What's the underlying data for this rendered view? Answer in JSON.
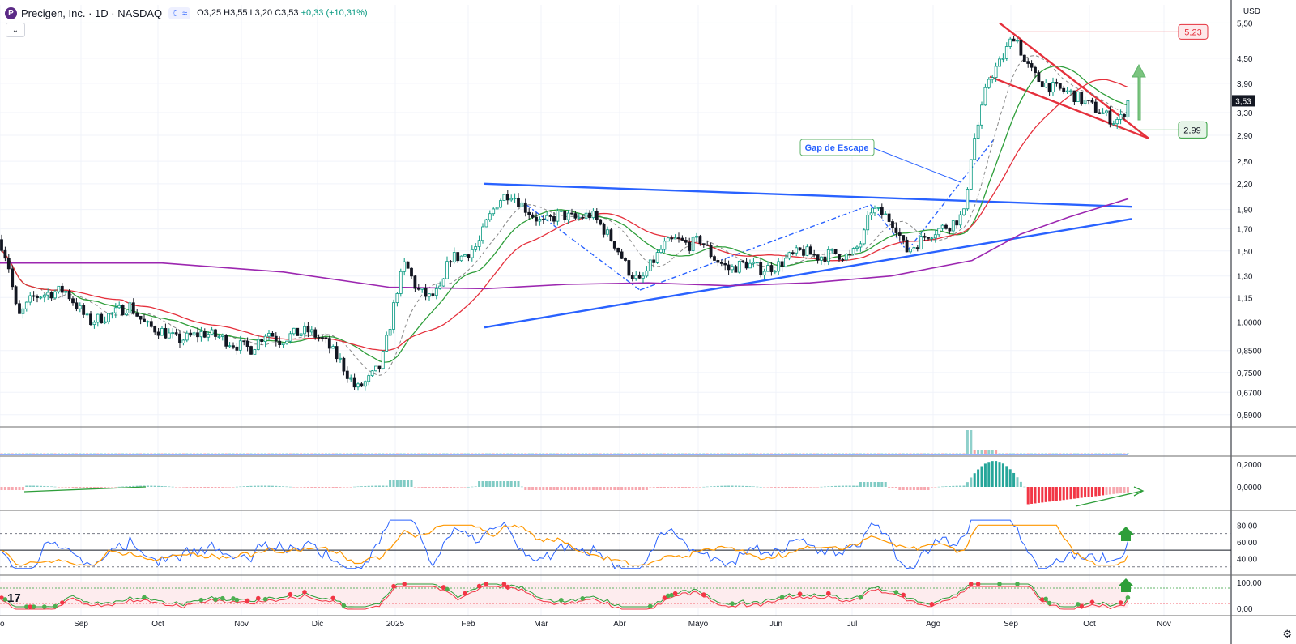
{
  "header": {
    "logo_letter": "P",
    "title": "Precigen, Inc. · 1D · NASDAQ",
    "pill_icons": [
      "moon-icon",
      "approx-icon"
    ],
    "pill_text": "☾ ≈",
    "open": "O3,25",
    "high": "H3,55",
    "low": "L3,20",
    "close": "C3,53",
    "change": "+0,33 (+10,31%)",
    "collapse_label": "⌄",
    "currency": "USD"
  },
  "colors": {
    "up": "#089981",
    "down": "#131722",
    "ma_fast": "#2e9e3a",
    "ma_mid": "#e5303c",
    "ma_slow": "#9c27b0",
    "trendline": "#2962ff",
    "wedge": "#e5303c",
    "annotation_green": "#5fb36a"
  },
  "chart_data": [
    {
      "type": "line",
      "series_kind": "candlestick",
      "y_scale": "log",
      "y_ticks": [
        "5,50",
        "4,50",
        "3,90",
        "3,30",
        "2,90",
        "2,50",
        "2,20",
        "1,90",
        "1,70",
        "1,50",
        "1,30",
        "1,15",
        "1,0000",
        "0,8500",
        "0,7500",
        "0,6700",
        "0,5900"
      ],
      "y_tick_values": [
        5.5,
        4.5,
        3.9,
        3.3,
        2.9,
        2.5,
        2.2,
        1.9,
        1.7,
        1.5,
        1.3,
        1.15,
        1.0,
        0.85,
        0.75,
        0.67,
        0.59
      ],
      "ylim": [
        0.55,
        6.1
      ],
      "x_ticks": [
        "go",
        "Sep",
        "Oct",
        "Nov",
        "Dic",
        "2025",
        "Feb",
        "Mar",
        "Abr",
        "Mayo",
        "Jun",
        "Jul",
        "Ago",
        "Sep",
        "Oct",
        "Nov"
      ],
      "price_path": [
        [
          0,
          1.6
        ],
        [
          10,
          1.4
        ],
        [
          22,
          1.02
        ],
        [
          40,
          1.15
        ],
        [
          60,
          1.18
        ],
        [
          80,
          1.2
        ],
        [
          110,
          1.0
        ],
        [
          140,
          1.05
        ],
        [
          160,
          1.1
        ],
        [
          180,
          0.98
        ],
        [
          200,
          0.95
        ],
        [
          220,
          0.9
        ],
        [
          250,
          0.94
        ],
        [
          270,
          0.92
        ],
        [
          290,
          0.88
        ],
        [
          310,
          0.86
        ],
        [
          330,
          0.95
        ],
        [
          345,
          0.9
        ],
        [
          360,
          0.93
        ],
        [
          380,
          0.95
        ],
        [
          400,
          0.9
        ],
        [
          420,
          0.8
        ],
        [
          440,
          0.68
        ],
        [
          455,
          0.72
        ],
        [
          470,
          0.78
        ],
        [
          480,
          0.95
        ],
        [
          490,
          1.2
        ],
        [
          500,
          1.4
        ],
        [
          515,
          1.2
        ],
        [
          530,
          1.15
        ],
        [
          545,
          1.2
        ],
        [
          555,
          1.45
        ],
        [
          570,
          1.45
        ],
        [
          590,
          1.55
        ],
        [
          600,
          1.75
        ],
        [
          615,
          2.0
        ],
        [
          630,
          2.1
        ],
        [
          650,
          1.9
        ],
        [
          670,
          1.75
        ],
        [
          690,
          1.85
        ],
        [
          710,
          1.8
        ],
        [
          730,
          1.85
        ],
        [
          745,
          1.7
        ],
        [
          760,
          1.55
        ],
        [
          775,
          1.35
        ],
        [
          790,
          1.25
        ],
        [
          805,
          1.4
        ],
        [
          820,
          1.55
        ],
        [
          835,
          1.6
        ],
        [
          850,
          1.55
        ],
        [
          865,
          1.6
        ],
        [
          880,
          1.45
        ],
        [
          900,
          1.35
        ],
        [
          920,
          1.4
        ],
        [
          940,
          1.35
        ],
        [
          960,
          1.38
        ],
        [
          975,
          1.45
        ],
        [
          990,
          1.5
        ],
        [
          1010,
          1.45
        ],
        [
          1030,
          1.48
        ],
        [
          1050,
          1.45
        ],
        [
          1065,
          1.6
        ],
        [
          1075,
          1.9
        ],
        [
          1090,
          1.85
        ],
        [
          1105,
          1.75
        ],
        [
          1118,
          1.5
        ],
        [
          1130,
          1.55
        ],
        [
          1145,
          1.65
        ],
        [
          1160,
          1.7
        ],
        [
          1175,
          1.75
        ],
        [
          1190,
          1.85
        ],
        [
          1200,
          2.7
        ],
        [
          1210,
          3.2
        ],
        [
          1220,
          4.0
        ],
        [
          1235,
          4.4
        ],
        [
          1253,
          5.2
        ],
        [
          1265,
          4.4
        ],
        [
          1280,
          4.0
        ],
        [
          1300,
          3.8
        ],
        [
          1320,
          3.7
        ],
        [
          1340,
          3.5
        ],
        [
          1360,
          3.3
        ],
        [
          1375,
          3.15
        ],
        [
          1385,
          3.2
        ],
        [
          1393,
          3.53
        ]
      ],
      "last_price": "3,53",
      "overlays": [
        {
          "kind": "moving_average_fast"
        },
        {
          "kind": "moving_average_dashed"
        },
        {
          "kind": "moving_average_mid"
        },
        {
          "kind": "moving_average_slow"
        }
      ],
      "annotations": {
        "gap_label": "Gap de Escape",
        "high_label": "5,23",
        "low_label": "2,99"
      }
    },
    {
      "type": "bar",
      "panel": "volume",
      "spike_position": "Ago"
    },
    {
      "type": "bar",
      "panel": "oscillator",
      "y_ticks": [
        "0,2000",
        "0,0000"
      ],
      "y_tick_values": [
        0.2,
        0.0
      ]
    },
    {
      "type": "line",
      "panel": "rsi",
      "y_ticks": [
        "80,00",
        "60,00",
        "40,00"
      ],
      "y_tick_values": [
        80,
        60,
        40
      ],
      "ylim": [
        22,
        90
      ]
    },
    {
      "type": "area",
      "panel": "trend_indicator",
      "y_ticks": [
        "100,00",
        "0,00"
      ],
      "y_tick_values": [
        100,
        0
      ]
    }
  ]
}
